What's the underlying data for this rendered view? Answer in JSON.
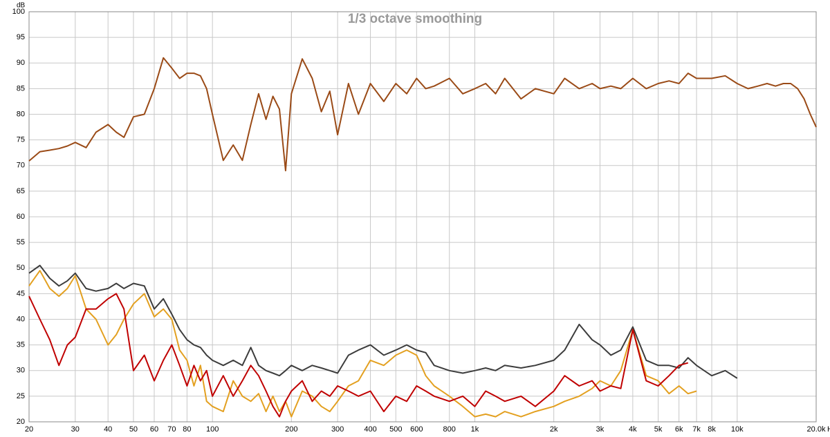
{
  "chart_data": {
    "type": "line",
    "title": "1/3 octave smoothing",
    "ylabel": "dB",
    "xlabel": "Hz",
    "log_x": true,
    "grid": true,
    "x": [
      20,
      22,
      24,
      26,
      28,
      30,
      33,
      36,
      40,
      43,
      46,
      50,
      55,
      60,
      65,
      70,
      75,
      80,
      85,
      90,
      95,
      100,
      110,
      120,
      130,
      140,
      150,
      160,
      170,
      180,
      190,
      200,
      220,
      240,
      260,
      280,
      300,
      330,
      360,
      400,
      450,
      500,
      550,
      600,
      650,
      700,
      800,
      900,
      1000,
      1100,
      1200,
      1300,
      1500,
      1700,
      2000,
      2200,
      2500,
      2800,
      3000,
      3300,
      3600,
      4000,
      4500,
      5000,
      5500,
      6000,
      6500,
      7000,
      8000,
      9000,
      10000,
      11000,
      12000,
      13000,
      14000,
      15000,
      16000,
      17000,
      18000,
      19000,
      20000
    ],
    "series": [
      {
        "color": "#9a4a16",
        "values": [
          70.9,
          72.7,
          73,
          73.3,
          73.8,
          74.5,
          73.5,
          76.5,
          78,
          76.5,
          75.5,
          79.5,
          80,
          85,
          91,
          89,
          87,
          88,
          88,
          87.5,
          85,
          80,
          71,
          74,
          71,
          78,
          84,
          79,
          83.5,
          81,
          69,
          84,
          90.8,
          87,
          80.5,
          84.5,
          76,
          86,
          80,
          86,
          82.5,
          86,
          84,
          87,
          85,
          85.5,
          87,
          84,
          85,
          86,
          84,
          87,
          83,
          85,
          84,
          87,
          85,
          86,
          85,
          85.5,
          85,
          87,
          85,
          86,
          86.5,
          86,
          88,
          87,
          87,
          87.5,
          86,
          85,
          85.5,
          86,
          85.5,
          86,
          86,
          85,
          83,
          80,
          77.5
        ]
      },
      {
        "color": "#3c3c3c",
        "values": [
          49,
          50.5,
          48,
          46.5,
          47.5,
          49,
          46,
          45.5,
          46,
          47,
          46,
          47,
          46.5,
          42,
          44,
          41,
          38,
          36,
          35,
          34.5,
          33,
          32,
          31,
          32,
          31,
          34.5,
          31,
          30,
          29.5,
          29,
          30,
          31,
          30,
          31,
          30.5,
          30,
          29.5,
          33,
          34,
          35,
          33,
          34,
          35,
          34,
          33.5,
          31,
          30,
          29.5,
          30,
          30.5,
          30,
          31,
          30.5,
          31,
          32,
          34,
          39,
          36,
          35,
          33,
          34,
          38.5,
          32,
          31,
          31,
          30.5,
          32.5,
          31,
          29,
          30,
          28.5,
          null,
          null,
          null,
          null,
          null,
          null,
          null,
          null,
          null,
          null
        ]
      },
      {
        "color": "#e3a020",
        "values": [
          46.5,
          49.5,
          46,
          44.5,
          46,
          48.5,
          42,
          40,
          35,
          37,
          40,
          43,
          45,
          40.5,
          42,
          40,
          34,
          32,
          27,
          31,
          24,
          23,
          22,
          28,
          25,
          24,
          25.5,
          22,
          25,
          22,
          24,
          21,
          26,
          25,
          23,
          22,
          24,
          27,
          28,
          32,
          31,
          33,
          34,
          33,
          29,
          27,
          25,
          23,
          21,
          21.5,
          21,
          22,
          21,
          22,
          23,
          24,
          25,
          26.5,
          28,
          27,
          30,
          38,
          29,
          28,
          25.5,
          27,
          25.5,
          26,
          null,
          null,
          null,
          null,
          null,
          null,
          null,
          null,
          null,
          null,
          null,
          null,
          null
        ]
      },
      {
        "color": "#c00000",
        "values": [
          44.5,
          40,
          36,
          31,
          35,
          36.5,
          42,
          42,
          44,
          45,
          42,
          30,
          33,
          28,
          32,
          35,
          31,
          27,
          31,
          28,
          30,
          25,
          29,
          25,
          28,
          31,
          29,
          26,
          23,
          21,
          24,
          26,
          28,
          24,
          26,
          25,
          27,
          26,
          25,
          26,
          22,
          25,
          24,
          27,
          26,
          25,
          24,
          25,
          23,
          26,
          25,
          24,
          25,
          23,
          26,
          29,
          27,
          28,
          26,
          27,
          26.5,
          38,
          28,
          27,
          29,
          31,
          31.5,
          null,
          null,
          null,
          null,
          null,
          null,
          null,
          null,
          null,
          null,
          null,
          null,
          null,
          null
        ]
      }
    ],
    "xlim": [
      20,
      20000
    ],
    "xticks": [
      20,
      30,
      40,
      50,
      60,
      70,
      80,
      100,
      200,
      300,
      400,
      500,
      600,
      800,
      {
        "value": 1000,
        "label": "1k"
      },
      {
        "value": 2000,
        "label": "2k"
      },
      {
        "value": 3000,
        "label": "3k"
      },
      {
        "value": 4000,
        "label": "4k"
      },
      {
        "value": 5000,
        "label": "5k"
      },
      {
        "value": 6000,
        "label": "6k"
      },
      {
        "value": 7000,
        "label": "7k"
      },
      {
        "value": 8000,
        "label": "8k"
      },
      {
        "value": 10000,
        "label": "10k"
      },
      {
        "value": 20000,
        "label": "20.0k"
      }
    ],
    "ylim": [
      20,
      100
    ],
    "yticks": [
      20,
      25,
      30,
      35,
      40,
      45,
      50,
      55,
      60,
      65,
      70,
      75,
      80,
      85,
      90,
      95,
      100
    ]
  }
}
